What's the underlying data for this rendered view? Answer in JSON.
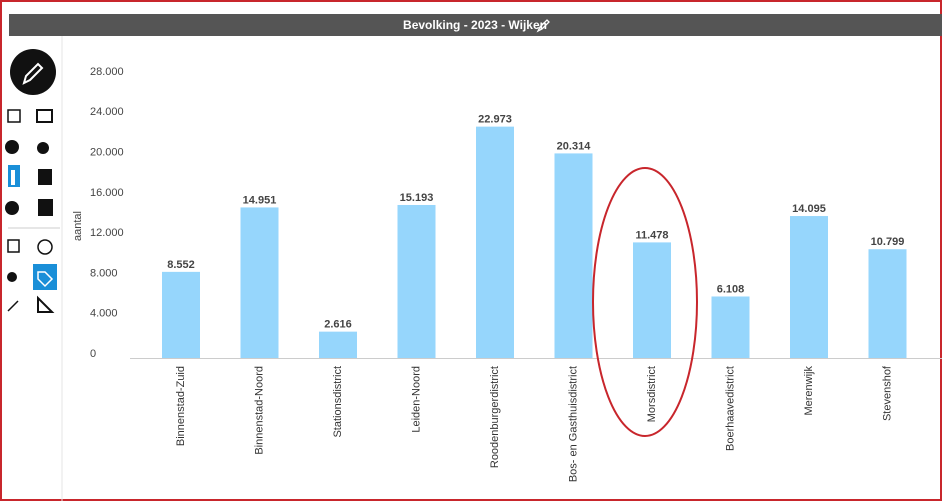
{
  "chart_data": {
    "type": "bar",
    "title": "Bevolking - 2023 - Wijken",
    "y_label": "aantal",
    "categories": [
      "Binnenstad-Zuid",
      "Binnenstad-Noord",
      "Stationsdistrict",
      "Leiden-Noord",
      "Roodenburgerdistrict",
      "Bos- en Gasthuisdistrict",
      "Morsdistrict",
      "Boerhaavedistrict",
      "Merenwijk",
      "Stevenshof"
    ],
    "values": [
      8552,
      14951,
      2616,
      15193,
      22973,
      20314,
      11478,
      6108,
      14095,
      10799
    ],
    "value_labels": [
      "8.552",
      "14.951",
      "2.616",
      "15.193",
      "22.973",
      "20.314",
      "11.478",
      "6.108",
      "14.095",
      "10.799"
    ],
    "color": "#96d6fc",
    "ylim": [
      0,
      28000
    ],
    "yticks": [
      0,
      {
        "value": 4000,
        "label": "4.000"
      },
      {
        "value": 8000,
        "label": "8.000"
      },
      {
        "value": 12000,
        "label": "12.000"
      },
      {
        "value": 16000,
        "label": "16.000"
      },
      {
        "value": 20000,
        "label": "20.000"
      },
      {
        "value": 24000,
        "label": "24.000"
      },
      {
        "value": 28000,
        "label": "28.000"
      }
    ],
    "grid": false
  }
}
